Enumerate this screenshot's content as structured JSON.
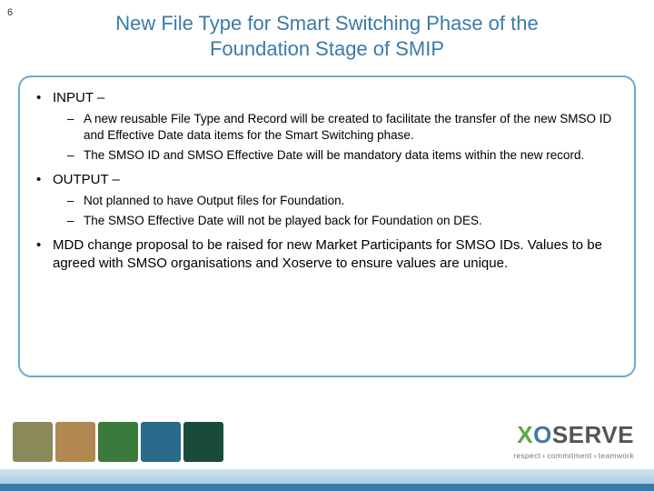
{
  "pageNumber": "6",
  "title": "New File Type for Smart Switching Phase of the Foundation Stage of SMIP",
  "sections": [
    {
      "header": "INPUT –",
      "subs": [
        "A new reusable File Type and Record will be created to facilitate the transfer of the new SMSO ID and Effective Date data items for the Smart Switching phase.",
        "The SMSO ID and SMSO Effective Date will be mandatory data items within the new record."
      ]
    },
    {
      "header": "OUTPUT –",
      "subs": [
        "Not planned to have Output files for Foundation.",
        "The SMSO Effective Date will not be played back for Foundation on DES."
      ]
    },
    {
      "plain": "MDD change proposal to be raised for new Market Participants for SMSO IDs. Values to be agreed with SMSO organisations and Xoserve to ensure values are unique."
    }
  ],
  "footerImageColors": [
    "#8a8a5a",
    "#b08850",
    "#3a7a3a",
    "#2a6a8a",
    "#1a4a3a"
  ],
  "logo": {
    "x": "X",
    "o": "O",
    "rest": "SERVE"
  },
  "tagline": {
    "w1": "respect",
    "w2": "commitment",
    "w3": "teamwork"
  },
  "colors": {
    "titleColor": "#3b7ba8",
    "boxBorder": "#6ca9d0",
    "barDark": "#3b7ba8"
  }
}
